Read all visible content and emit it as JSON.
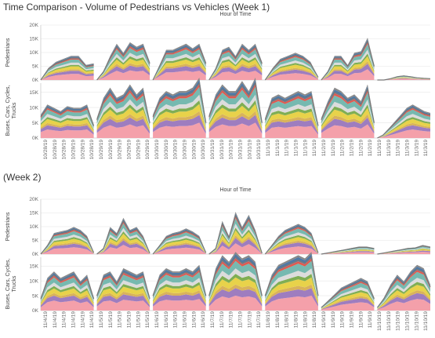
{
  "colors": {
    "layers": [
      "#f4a0aa",
      "#9e7dbf",
      "#d9b35a",
      "#e8d24a",
      "#7fae54",
      "#dcdcdc",
      "#76b9b0",
      "#e05a4f",
      "#4e79a7",
      "#888888"
    ],
    "grid": "#e6e6e6",
    "axis": "#bbbbbb",
    "outline": "#777777"
  },
  "chart_data": [
    {
      "type": "area",
      "title": "Time Comparison - Volume of Pedestrians vs Vehicles (Week 1)",
      "header": "Hour of Time",
      "x_tick_labels": [
        "10/28/19",
        "10/28/19",
        "10/28/19",
        "10/28/19",
        "10/28/19",
        "10/28/19",
        "10/29/19",
        "10/29/19",
        "10/29/19",
        "10/29/19",
        "10/29/19",
        "10/29/19",
        "10/30/19",
        "10/30/19",
        "10/30/19",
        "10/30/19",
        "10/30/19",
        "10/30/19",
        "10/31/19",
        "10/31/19",
        "10/31/19",
        "10/31/19",
        "10/31/19",
        "10/31/19",
        "11/1/19",
        "11/1/19",
        "11/1/19",
        "11/1/19",
        "11/1/19",
        "11/1/19",
        "11/2/19",
        "11/2/19",
        "11/2/19",
        "11/2/19",
        "11/2/19",
        "11/2/19",
        "11/3/19",
        "11/3/19",
        "11/3/19",
        "11/3/19",
        "11/3/19",
        "11/3/19"
      ],
      "panels": [
        {
          "row_label": "Pedestrians",
          "y_ticks": [
            "0K",
            "5K",
            "10K",
            "15K",
            "20K"
          ],
          "ylim": [
            0,
            20000
          ],
          "days": [
            {
              "date": "10/28/19",
              "totals": [
                0,
                4000,
                6000,
                7000,
                8000,
                8000,
                5000,
                5500
              ]
            },
            {
              "date": "10/29/19",
              "totals": [
                0,
                3000,
                8000,
                12000,
                9000,
                12500,
                11000,
                12000,
                6000
              ]
            },
            {
              "date": "10/30/19",
              "totals": [
                0,
                5000,
                10000,
                10000,
                11000,
                12000,
                10500,
                12000,
                6000
              ]
            },
            {
              "date": "10/31/19",
              "totals": [
                0,
                4000,
                10000,
                11000,
                8000,
                12000,
                10000,
                12000,
                6000
              ]
            },
            {
              "date": "11/1/19",
              "totals": [
                0,
                4000,
                7000,
                8000,
                9000,
                8000,
                6000,
                1000
              ]
            },
            {
              "date": "11/2/19",
              "totals": [
                0,
                3000,
                8000,
                8000,
                5000,
                9000,
                9500,
                14000,
                5000
              ]
            },
            {
              "date": "11/3/19",
              "totals": [
                0,
                0,
                500,
                1200,
                1500,
                1200,
                800,
                600,
                500
              ]
            }
          ]
        },
        {
          "row_label": "Buses, Cars, Cycles, Trucks",
          "y_ticks": [
            "0K",
            "5K",
            "10K",
            "15K"
          ],
          "ylim": [
            0,
            18000
          ],
          "days": [
            {
              "date": "10/28/19",
              "totals": [
                7000,
                10000,
                9000,
                8000,
                9500,
                9000,
                9000,
                10000,
                4000
              ]
            },
            {
              "date": "10/29/19",
              "totals": [
                6000,
                12000,
                15000,
                12000,
                13000,
                16000,
                13000,
                15000,
                5000
              ]
            },
            {
              "date": "10/30/19",
              "totals": [
                7000,
                12000,
                14000,
                13000,
                14000,
                14000,
                15000,
                18000,
                5000
              ]
            },
            {
              "date": "10/31/19",
              "totals": [
                7000,
                13000,
                16000,
                14000,
                14000,
                17000,
                14000,
                18000,
                5000
              ]
            },
            {
              "date": "11/1/19",
              "totals": [
                6000,
                12000,
                13000,
                12000,
                13000,
                14000,
                13000,
                14000,
                4000
              ]
            },
            {
              "date": "11/2/19",
              "totals": [
                6000,
                11000,
                15000,
                14000,
                12000,
                13000,
                11000,
                16000,
                5000
              ]
            },
            {
              "date": "11/3/19",
              "totals": [
                0,
                1000,
                3000,
                5000,
                7000,
                9000,
                10000,
                9000,
                8000,
                7500
              ]
            }
          ]
        }
      ]
    },
    {
      "type": "area",
      "title": "(Week 2)",
      "header": "Hour of Time",
      "x_tick_labels": [
        "11/4/19",
        "11/4/19",
        "11/4/19",
        "11/4/19",
        "11/4/19",
        "11/4/19",
        "11/5/19",
        "11/5/19",
        "11/5/19",
        "11/5/19",
        "11/5/19",
        "11/5/19",
        "11/6/19",
        "11/6/19",
        "11/6/19",
        "11/6/19",
        "11/6/19",
        "11/6/19",
        "11/7/19",
        "11/7/19",
        "11/7/19",
        "11/7/19",
        "11/7/19",
        "11/7/19",
        "11/8/19",
        "11/8/19",
        "11/8/19",
        "11/8/19",
        "11/8/19",
        "11/8/19",
        "11/9/19",
        "11/9/19",
        "11/9/19",
        "11/9/19",
        "11/9/19",
        "11/9/19",
        "11/10/19",
        "11/10/19",
        "11/10/19",
        "11/10/19",
        "11/10/19",
        "11/10/19"
      ],
      "panels": [
        {
          "row_label": "Pedestrians",
          "y_ticks": [
            "0K",
            "5K",
            "10K",
            "15K",
            "20K"
          ],
          "ylim": [
            0,
            20000
          ],
          "days": [
            {
              "date": "11/4/19",
              "totals": [
                0,
                3000,
                7000,
                7500,
                8000,
                9000,
                8000,
                6000,
                500
              ]
            },
            {
              "date": "11/5/19",
              "totals": [
                0,
                2000,
                9000,
                7000,
                12000,
                8000,
                9000,
                6000,
                300
              ]
            },
            {
              "date": "11/6/19",
              "totals": [
                0,
                3000,
                6000,
                7000,
                7500,
                8500,
                7500,
                6000,
                500
              ]
            },
            {
              "date": "11/7/19",
              "totals": [
                0,
                2000,
                11000,
                6000,
                14000,
                9000,
                13000,
                8000,
                300
              ]
            },
            {
              "date": "11/8/19",
              "totals": [
                0,
                3000,
                6000,
                8000,
                9000,
                10000,
                9000,
                7000,
                500
              ]
            },
            {
              "date": "11/9/19",
              "totals": [
                0,
                500,
                1000,
                1500,
                2000,
                2500,
                2500,
                2000
              ]
            },
            {
              "date": "11/10/19",
              "totals": [
                0,
                500,
                1000,
                1500,
                2000,
                2200,
                3000,
                2500
              ]
            }
          ]
        },
        {
          "row_label": "Buses, Cars, Cycles, Trucks",
          "y_ticks": [
            "0K",
            "5K",
            "10K",
            "15K"
          ],
          "ylim": [
            0,
            18000
          ],
          "days": [
            {
              "date": "11/4/19",
              "totals": [
                4000,
                10000,
                12000,
                10000,
                11000,
                12000,
                9000,
                11000,
                4000
              ]
            },
            {
              "date": "11/5/19",
              "totals": [
                5000,
                11000,
                12000,
                9000,
                13000,
                12000,
                11000,
                12000,
                4000
              ]
            },
            {
              "date": "11/6/19",
              "totals": [
                5000,
                11000,
                13000,
                12000,
                12000,
                13000,
                12000,
                14000,
                5000
              ]
            },
            {
              "date": "11/7/19",
              "totals": [
                5000,
                13000,
                17000,
                15000,
                18000,
                16000,
                17000,
                15000,
                5000
              ]
            },
            {
              "date": "11/8/19",
              "totals": [
                5000,
                11000,
                14000,
                15000,
                16000,
                17000,
                16000,
                18000,
                5000
              ]
            },
            {
              "date": "11/9/19",
              "totals": [
                1000,
                3000,
                5000,
                7000,
                8000,
                9000,
                10000,
                9000,
                4000
              ]
            },
            {
              "date": "11/10/19",
              "totals": [
                1000,
                4000,
                8000,
                11000,
                9000,
                12000,
                14000,
                13000,
                8000
              ]
            }
          ]
        }
      ]
    }
  ]
}
